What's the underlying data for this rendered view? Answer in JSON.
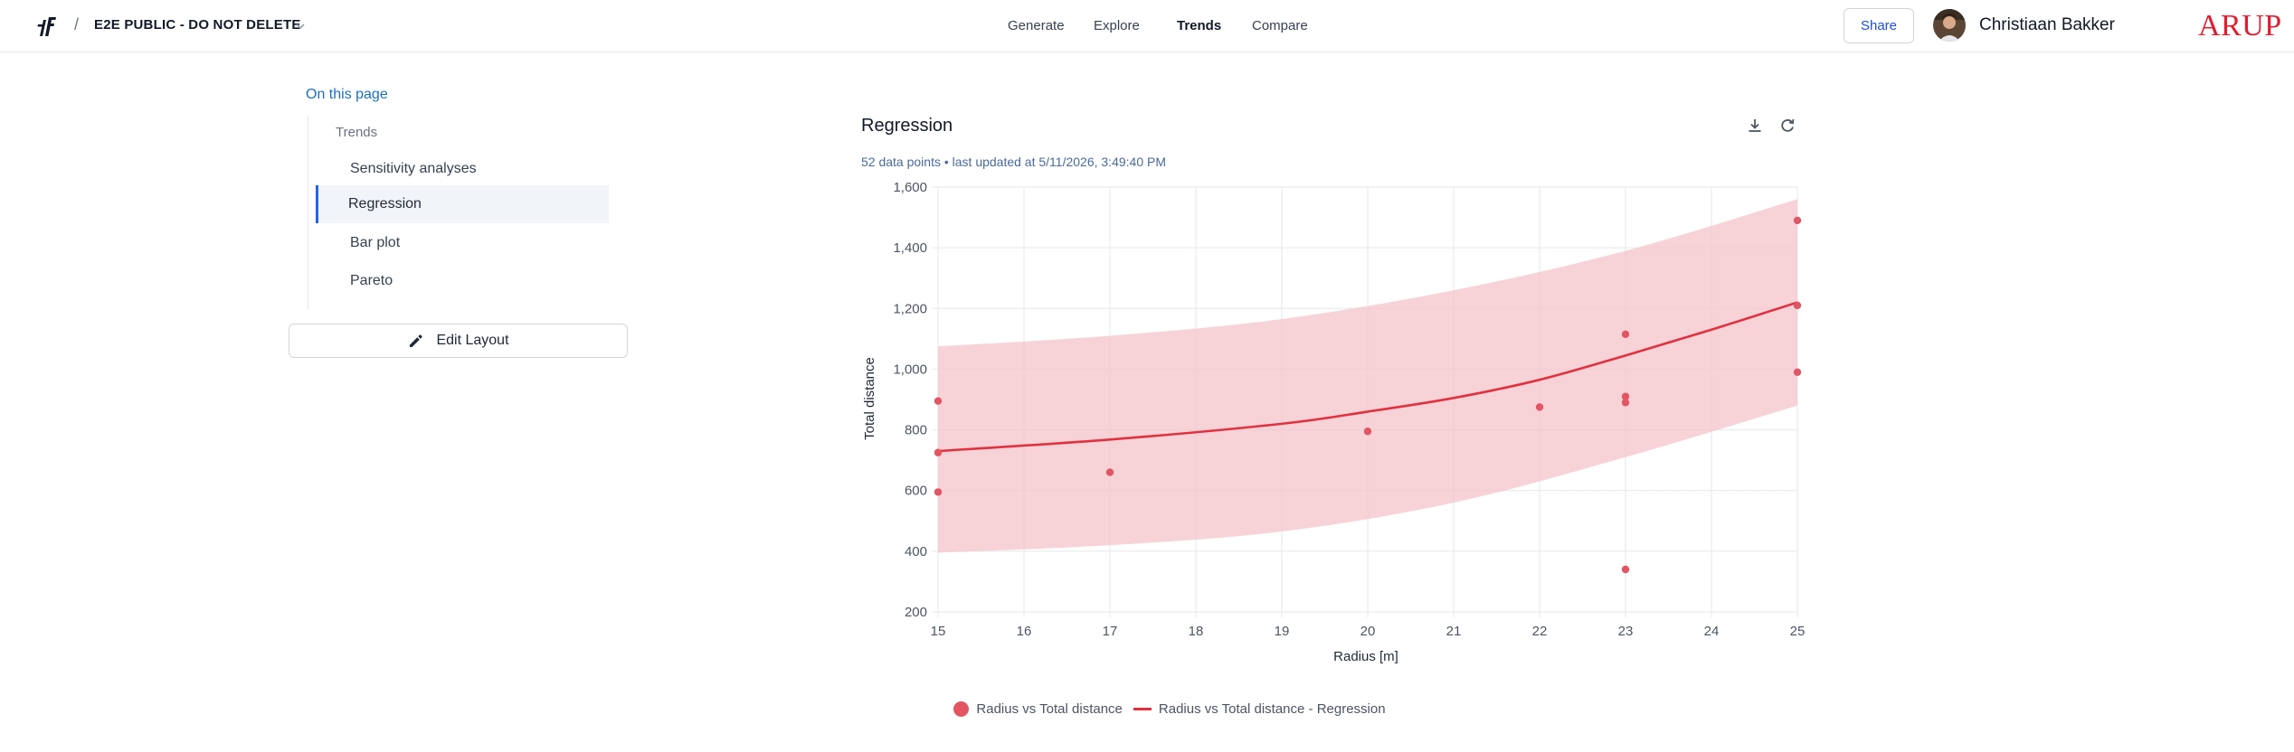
{
  "topbar": {
    "breadcrumb_separator": "/",
    "project_name": "E2E PUBLIC - DO NOT DELETE",
    "nav": [
      "Generate",
      "Explore",
      "Trends",
      "Compare"
    ],
    "nav_active": "Trends",
    "share_label": "Share",
    "user_name": "Christiaan Bakker",
    "brand": "ARUP"
  },
  "sidebar": {
    "on_this_page": "On this page",
    "section": "Trends",
    "items": [
      {
        "label": "Sensitivity analyses",
        "active": false
      },
      {
        "label": "Regression",
        "active": true
      },
      {
        "label": "Bar plot",
        "active": false
      },
      {
        "label": "Pareto",
        "active": false
      }
    ],
    "edit_layout_label": "Edit Layout"
  },
  "panel": {
    "title": "Regression",
    "subtitle": "52 data points • last updated at 5/11/2026, 3:49:40 PM"
  },
  "chart_data": {
    "type": "scatter",
    "xlabel": "Radius  [m]",
    "ylabel": "Total distance",
    "xlim": [
      15,
      25
    ],
    "ylim": [
      200,
      1600
    ],
    "x_ticks": [
      15,
      16,
      17,
      18,
      19,
      20,
      21,
      22,
      23,
      24,
      25
    ],
    "y_ticks": [
      200,
      400,
      600,
      800,
      1000,
      1200,
      1400,
      1600
    ],
    "y_tick_labels": [
      "200",
      "400",
      "600",
      "800",
      "1,000",
      "1,200",
      "1,400",
      "1,600"
    ],
    "grid": true,
    "legend_position": "bottom",
    "series": [
      {
        "name": "Radius vs Total distance",
        "kind": "points",
        "color": "#e25563",
        "points": [
          [
            15,
            895
          ],
          [
            15,
            725
          ],
          [
            15,
            595
          ],
          [
            17,
            660
          ],
          [
            20,
            795
          ],
          [
            22,
            875
          ],
          [
            23,
            1115
          ],
          [
            23,
            910
          ],
          [
            23,
            890
          ],
          [
            23,
            340
          ],
          [
            25,
            1490
          ],
          [
            25,
            1210
          ],
          [
            25,
            990
          ]
        ]
      },
      {
        "name": "Radius vs Total distance - Regression",
        "kind": "line",
        "color": "#e3303f",
        "band_color": "#f4c4cb",
        "line": [
          [
            15,
            730
          ],
          [
            17,
            768
          ],
          [
            19,
            820
          ],
          [
            20,
            860
          ],
          [
            21,
            905
          ],
          [
            22,
            965
          ],
          [
            23,
            1045
          ],
          [
            24,
            1130
          ],
          [
            25,
            1220
          ]
        ],
        "band_upper": [
          [
            15,
            1075
          ],
          [
            17,
            1110
          ],
          [
            19,
            1165
          ],
          [
            21,
            1260
          ],
          [
            23,
            1390
          ],
          [
            25,
            1560
          ]
        ],
        "band_lower": [
          [
            15,
            395
          ],
          [
            17,
            420
          ],
          [
            19,
            465
          ],
          [
            21,
            560
          ],
          [
            23,
            710
          ],
          [
            25,
            880
          ]
        ]
      }
    ]
  }
}
